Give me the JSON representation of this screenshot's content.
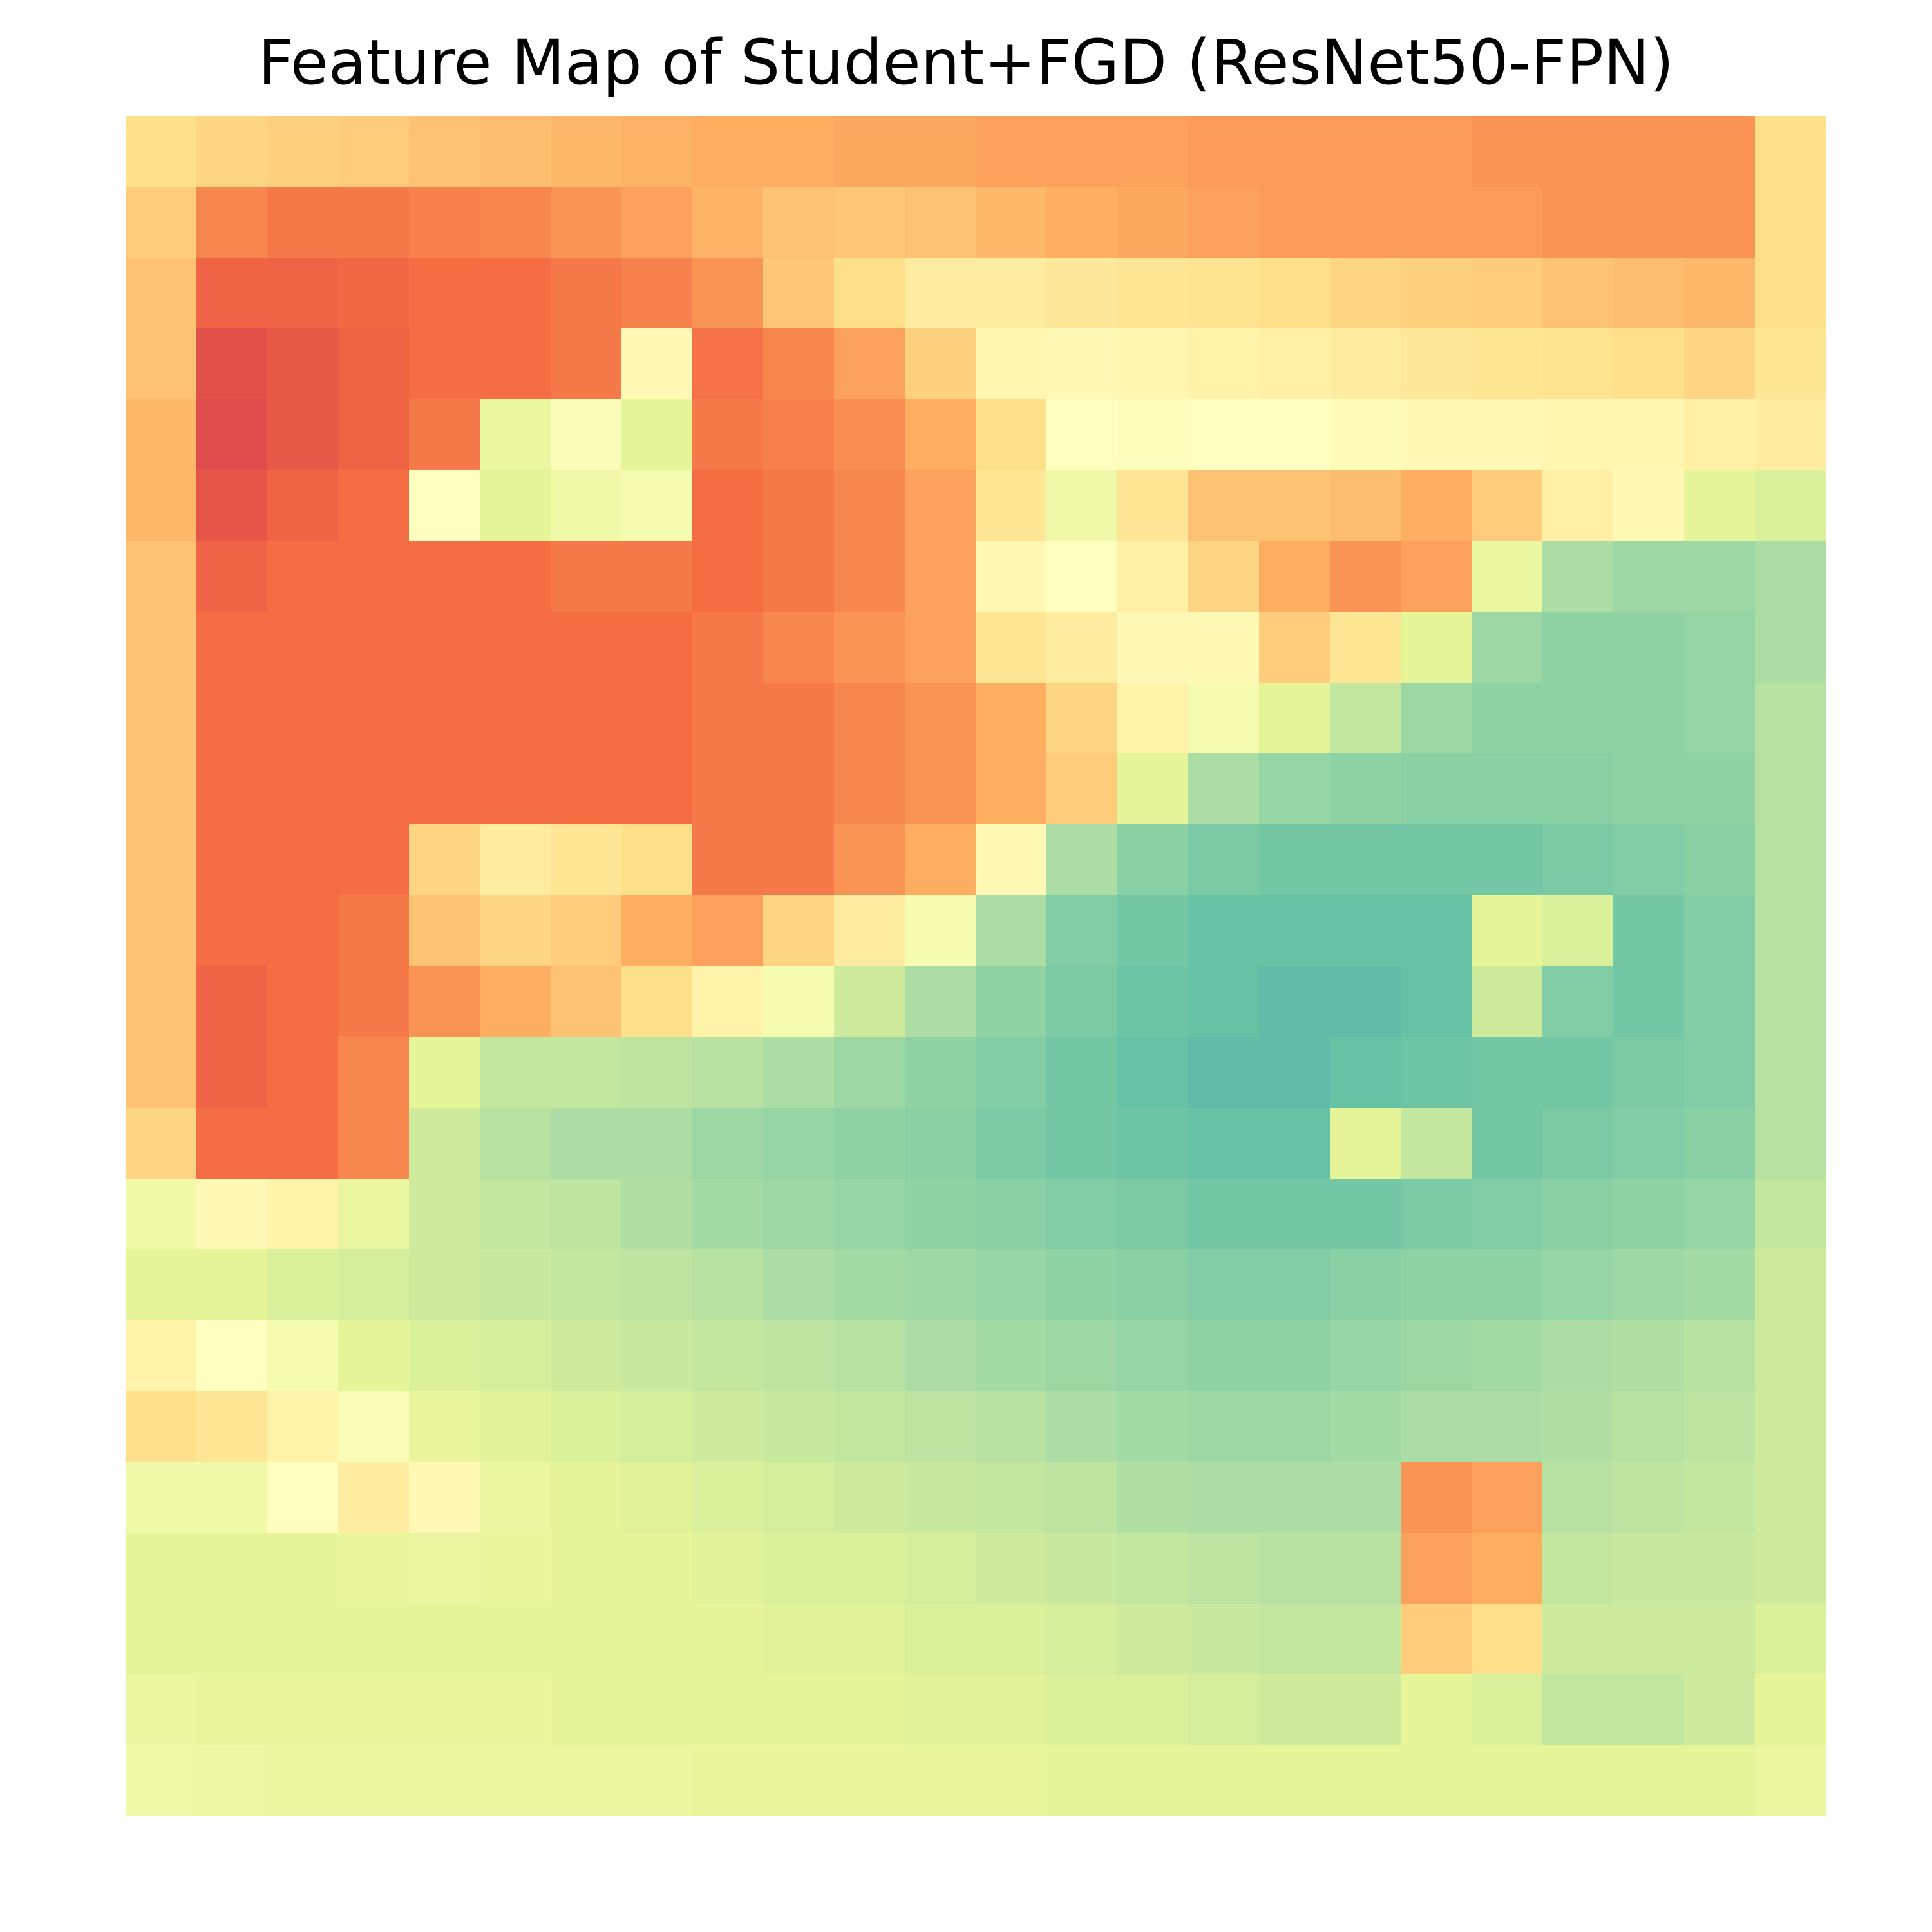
{
  "chart_data": {
    "type": "heatmap",
    "title": "Feature Map of Student+FGD (ResNet50-FPN)",
    "xlabel": "",
    "ylabel": "",
    "axes_visible": false,
    "grid": false,
    "legend": "none",
    "colormap": "Spectral",
    "colormap_stops": [
      "#9e0142",
      "#d53e4f",
      "#f46d43",
      "#fdae61",
      "#fee08b",
      "#ffffbf",
      "#e6f598",
      "#abdda4",
      "#66c2a5",
      "#3288bd",
      "#5e4fa2"
    ],
    "value_range": [
      0,
      1
    ],
    "value_meaning": "normalized activation, 1 = dark red (high), 0 = purple (low)",
    "rows": 24,
    "cols": 24,
    "values": [
      [
        0.6,
        0.62,
        0.63,
        0.64,
        0.66,
        0.67,
        0.68,
        0.69,
        0.7,
        0.7,
        0.71,
        0.71,
        0.72,
        0.72,
        0.72,
        0.73,
        0.73,
        0.73,
        0.73,
        0.74,
        0.74,
        0.74,
        0.74,
        0.6
      ],
      [
        0.64,
        0.76,
        0.78,
        0.78,
        0.77,
        0.76,
        0.74,
        0.72,
        0.69,
        0.66,
        0.65,
        0.66,
        0.68,
        0.7,
        0.71,
        0.72,
        0.73,
        0.73,
        0.73,
        0.73,
        0.74,
        0.74,
        0.74,
        0.6
      ],
      [
        0.66,
        0.82,
        0.82,
        0.81,
        0.8,
        0.8,
        0.78,
        0.77,
        0.74,
        0.65,
        0.6,
        0.56,
        0.56,
        0.57,
        0.58,
        0.59,
        0.6,
        0.62,
        0.63,
        0.64,
        0.66,
        0.67,
        0.68,
        0.6
      ],
      [
        0.66,
        0.86,
        0.84,
        0.82,
        0.8,
        0.8,
        0.78,
        0.52,
        0.79,
        0.76,
        0.72,
        0.63,
        0.53,
        0.52,
        0.53,
        0.54,
        0.55,
        0.56,
        0.57,
        0.58,
        0.59,
        0.6,
        0.62,
        0.58
      ],
      [
        0.68,
        0.87,
        0.84,
        0.82,
        0.78,
        0.42,
        0.48,
        0.4,
        0.78,
        0.77,
        0.75,
        0.7,
        0.6,
        0.5,
        0.49,
        0.5,
        0.5,
        0.51,
        0.52,
        0.52,
        0.53,
        0.53,
        0.55,
        0.56
      ],
      [
        0.68,
        0.85,
        0.82,
        0.8,
        0.5,
        0.4,
        0.44,
        0.46,
        0.8,
        0.78,
        0.76,
        0.72,
        0.58,
        0.44,
        0.58,
        0.66,
        0.66,
        0.67,
        0.7,
        0.64,
        0.55,
        0.52,
        0.4,
        0.38
      ],
      [
        0.66,
        0.82,
        0.8,
        0.8,
        0.8,
        0.8,
        0.78,
        0.78,
        0.8,
        0.78,
        0.76,
        0.72,
        0.52,
        0.5,
        0.55,
        0.62,
        0.7,
        0.74,
        0.72,
        0.42,
        0.3,
        0.28,
        0.28,
        0.3
      ],
      [
        0.66,
        0.8,
        0.8,
        0.8,
        0.8,
        0.8,
        0.8,
        0.8,
        0.78,
        0.76,
        0.74,
        0.72,
        0.58,
        0.56,
        0.52,
        0.52,
        0.64,
        0.58,
        0.4,
        0.28,
        0.26,
        0.26,
        0.27,
        0.3
      ],
      [
        0.66,
        0.8,
        0.8,
        0.8,
        0.8,
        0.8,
        0.8,
        0.8,
        0.78,
        0.78,
        0.76,
        0.74,
        0.7,
        0.62,
        0.54,
        0.46,
        0.4,
        0.34,
        0.28,
        0.26,
        0.26,
        0.26,
        0.27,
        0.32
      ],
      [
        0.66,
        0.8,
        0.8,
        0.8,
        0.8,
        0.8,
        0.8,
        0.8,
        0.78,
        0.78,
        0.76,
        0.74,
        0.7,
        0.64,
        0.4,
        0.3,
        0.27,
        0.26,
        0.25,
        0.25,
        0.25,
        0.26,
        0.26,
        0.32
      ],
      [
        0.66,
        0.8,
        0.8,
        0.8,
        0.62,
        0.56,
        0.58,
        0.6,
        0.78,
        0.78,
        0.74,
        0.7,
        0.52,
        0.3,
        0.25,
        0.23,
        0.22,
        0.22,
        0.22,
        0.22,
        0.23,
        0.24,
        0.25,
        0.32
      ],
      [
        0.66,
        0.8,
        0.8,
        0.78,
        0.66,
        0.62,
        0.64,
        0.7,
        0.72,
        0.62,
        0.56,
        0.46,
        0.3,
        0.24,
        0.22,
        0.2,
        0.2,
        0.2,
        0.2,
        0.4,
        0.38,
        0.22,
        0.24,
        0.32
      ],
      [
        0.66,
        0.82,
        0.8,
        0.78,
        0.74,
        0.7,
        0.66,
        0.6,
        0.54,
        0.46,
        0.36,
        0.3,
        0.26,
        0.23,
        0.21,
        0.2,
        0.19,
        0.19,
        0.2,
        0.36,
        0.24,
        0.22,
        0.24,
        0.32
      ],
      [
        0.66,
        0.82,
        0.8,
        0.76,
        0.4,
        0.34,
        0.34,
        0.33,
        0.32,
        0.3,
        0.28,
        0.26,
        0.24,
        0.22,
        0.2,
        0.19,
        0.19,
        0.2,
        0.21,
        0.22,
        0.22,
        0.23,
        0.24,
        0.32
      ],
      [
        0.62,
        0.8,
        0.8,
        0.76,
        0.36,
        0.32,
        0.3,
        0.3,
        0.28,
        0.27,
        0.26,
        0.25,
        0.23,
        0.22,
        0.21,
        0.2,
        0.2,
        0.4,
        0.34,
        0.22,
        0.23,
        0.24,
        0.25,
        0.32
      ],
      [
        0.44,
        0.52,
        0.54,
        0.42,
        0.36,
        0.34,
        0.33,
        0.31,
        0.29,
        0.28,
        0.27,
        0.26,
        0.25,
        0.24,
        0.23,
        0.22,
        0.22,
        0.22,
        0.23,
        0.24,
        0.25,
        0.26,
        0.27,
        0.34
      ],
      [
        0.4,
        0.4,
        0.38,
        0.37,
        0.36,
        0.35,
        0.34,
        0.33,
        0.32,
        0.3,
        0.29,
        0.28,
        0.27,
        0.26,
        0.25,
        0.24,
        0.24,
        0.25,
        0.26,
        0.26,
        0.27,
        0.28,
        0.29,
        0.36
      ],
      [
        0.54,
        0.5,
        0.46,
        0.4,
        0.38,
        0.37,
        0.36,
        0.35,
        0.34,
        0.33,
        0.32,
        0.3,
        0.29,
        0.28,
        0.27,
        0.26,
        0.26,
        0.27,
        0.28,
        0.29,
        0.3,
        0.31,
        0.32,
        0.36
      ],
      [
        0.6,
        0.58,
        0.54,
        0.48,
        0.41,
        0.39,
        0.38,
        0.37,
        0.36,
        0.35,
        0.34,
        0.33,
        0.32,
        0.3,
        0.29,
        0.28,
        0.28,
        0.29,
        0.3,
        0.3,
        0.31,
        0.32,
        0.33,
        0.36
      ],
      [
        0.44,
        0.44,
        0.5,
        0.56,
        0.52,
        0.42,
        0.4,
        0.39,
        0.38,
        0.37,
        0.36,
        0.35,
        0.34,
        0.33,
        0.31,
        0.3,
        0.3,
        0.3,
        0.74,
        0.72,
        0.32,
        0.33,
        0.34,
        0.36
      ],
      [
        0.4,
        0.4,
        0.4,
        0.41,
        0.42,
        0.41,
        0.4,
        0.4,
        0.39,
        0.38,
        0.38,
        0.37,
        0.36,
        0.35,
        0.34,
        0.33,
        0.32,
        0.32,
        0.72,
        0.7,
        0.34,
        0.35,
        0.35,
        0.36
      ],
      [
        0.4,
        0.4,
        0.4,
        0.4,
        0.4,
        0.4,
        0.4,
        0.4,
        0.4,
        0.39,
        0.39,
        0.38,
        0.38,
        0.37,
        0.36,
        0.35,
        0.34,
        0.34,
        0.64,
        0.6,
        0.36,
        0.36,
        0.36,
        0.38
      ],
      [
        0.42,
        0.41,
        0.41,
        0.41,
        0.41,
        0.41,
        0.4,
        0.4,
        0.4,
        0.4,
        0.4,
        0.39,
        0.39,
        0.38,
        0.38,
        0.37,
        0.36,
        0.36,
        0.4,
        0.38,
        0.34,
        0.34,
        0.36,
        0.4
      ],
      [
        0.44,
        0.43,
        0.42,
        0.42,
        0.42,
        0.42,
        0.42,
        0.42,
        0.41,
        0.41,
        0.41,
        0.41,
        0.41,
        0.4,
        0.4,
        0.4,
        0.4,
        0.4,
        0.4,
        0.4,
        0.4,
        0.4,
        0.4,
        0.42
      ]
    ]
  }
}
